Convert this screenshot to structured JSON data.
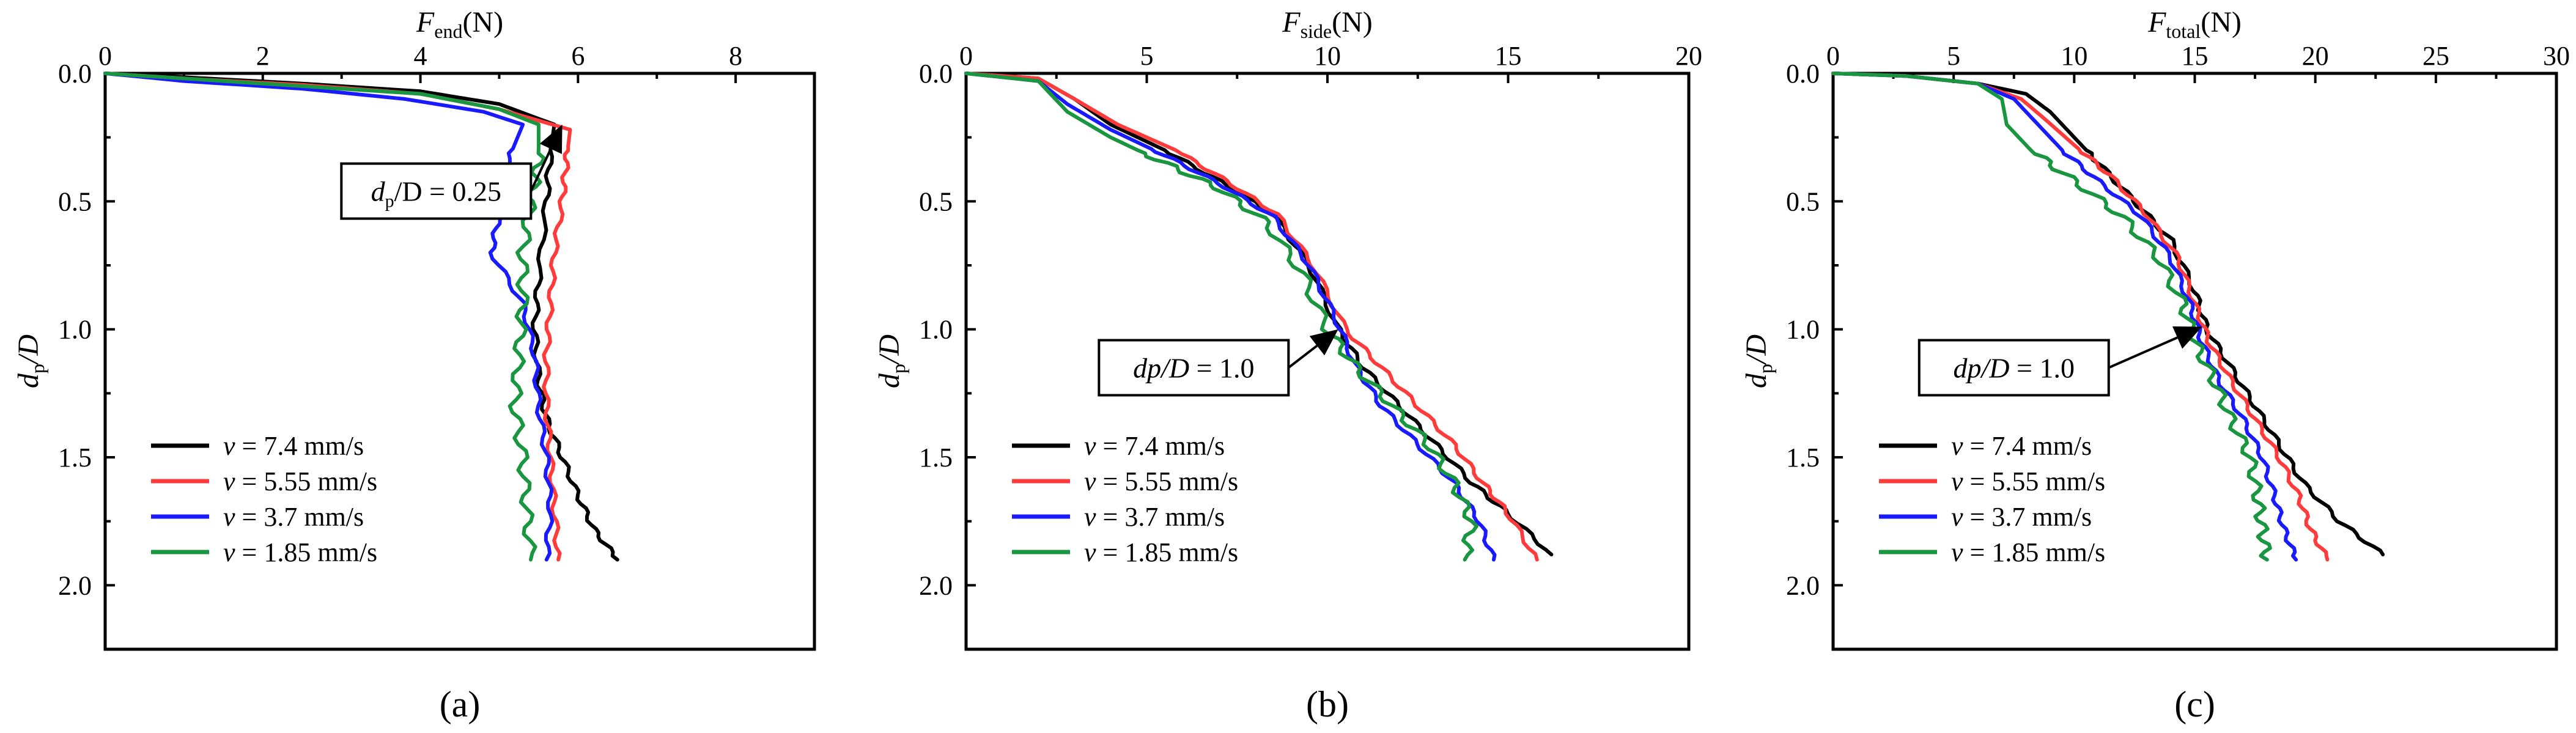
{
  "colors": {
    "v_7_4": "#000000",
    "v_5_55": "#ff3b3b",
    "v_3_7": "#1a1aff",
    "v_1_85": "#1a9641"
  },
  "chart_data": [
    {
      "type": "line",
      "panel_label": "(a)",
      "xlabel": {
        "main": "F",
        "sub": "end",
        "unit": "(N)"
      },
      "ylabel": {
        "main": "d",
        "sub": "p",
        "rest": "/D"
      },
      "xlim": [
        0,
        9
      ],
      "ylim": [
        0,
        2.25
      ],
      "xticks": [
        0,
        2,
        4,
        6,
        8
      ],
      "xtick_labels": [
        "0",
        "2",
        "4",
        "6",
        "8"
      ],
      "yticks": [
        0,
        0.5,
        1.0,
        1.5,
        2.0
      ],
      "ytick_labels": [
        "0.0",
        "0.5",
        "1.0",
        "1.5",
        "2.0"
      ],
      "annotation": {
        "main": "d",
        "sub": "p",
        "rest": "/D = 0.25",
        "point": [
          5.8,
          0.2
        ],
        "text_pos": [
          4.2,
          0.46
        ]
      },
      "legend": {
        "position": "bottom-left",
        "entries": [
          {
            "v": "v",
            "text": " = 7.4 mm/s",
            "color_key": "v_7_4"
          },
          {
            "v": "v",
            "text": " = 5.55 mm/s",
            "color_key": "v_5_55"
          },
          {
            "v": "v",
            "text": " = 3.7 mm/s",
            "color_key": "v_3_7"
          },
          {
            "v": "v",
            "text": " = 1.85 mm/s",
            "color_key": "v_1_85"
          }
        ]
      },
      "series": [
        {
          "name": "v = 7.4 mm/s",
          "color_key": "v_7_4",
          "points": [
            [
              0,
              0
            ],
            [
              1,
              0.015
            ],
            [
              2.5,
              0.04
            ],
            [
              4,
              0.07
            ],
            [
              5,
              0.12
            ],
            [
              5.7,
              0.2
            ],
            [
              5.65,
              0.3
            ],
            [
              5.6,
              0.5
            ],
            [
              5.5,
              0.8
            ],
            [
              5.45,
              1.0
            ],
            [
              5.5,
              1.2
            ],
            [
              5.6,
              1.35
            ],
            [
              5.8,
              1.5
            ],
            [
              6.0,
              1.65
            ],
            [
              6.2,
              1.78
            ],
            [
              6.5,
              1.9
            ]
          ]
        },
        {
          "name": "v = 5.55 mm/s",
          "color_key": "v_5_55",
          "points": [
            [
              0,
              0
            ],
            [
              1,
              0.02
            ],
            [
              2.5,
              0.045
            ],
            [
              4,
              0.08
            ],
            [
              5,
              0.14
            ],
            [
              5.9,
              0.22
            ],
            [
              5.85,
              0.35
            ],
            [
              5.8,
              0.5
            ],
            [
              5.7,
              0.7
            ],
            [
              5.65,
              0.9
            ],
            [
              5.6,
              1.1
            ],
            [
              5.6,
              1.3
            ],
            [
              5.65,
              1.5
            ],
            [
              5.7,
              1.7
            ],
            [
              5.75,
              1.9
            ]
          ]
        },
        {
          "name": "v = 3.7 mm/s",
          "color_key": "v_3_7",
          "points": [
            [
              0,
              0
            ],
            [
              1,
              0.03
            ],
            [
              2.5,
              0.06
            ],
            [
              3.8,
              0.1
            ],
            [
              4.8,
              0.15
            ],
            [
              5.3,
              0.2
            ],
            [
              5.1,
              0.35
            ],
            [
              5.0,
              0.55
            ],
            [
              4.9,
              0.7
            ],
            [
              5.3,
              0.9
            ],
            [
              5.45,
              1.1
            ],
            [
              5.5,
              1.3
            ],
            [
              5.6,
              1.5
            ],
            [
              5.65,
              1.7
            ],
            [
              5.6,
              1.9
            ]
          ]
        },
        {
          "name": "v = 1.85 mm/s",
          "color_key": "v_1_85",
          "points": [
            [
              0,
              0
            ],
            [
              1,
              0.02
            ],
            [
              2.5,
              0.05
            ],
            [
              4,
              0.08
            ],
            [
              5,
              0.14
            ],
            [
              5.5,
              0.2
            ],
            [
              5.5,
              0.35
            ],
            [
              5.4,
              0.5
            ],
            [
              5.3,
              0.7
            ],
            [
              5.3,
              0.9
            ],
            [
              5.25,
              1.1
            ],
            [
              5.2,
              1.3
            ],
            [
              5.3,
              1.5
            ],
            [
              5.35,
              1.7
            ],
            [
              5.4,
              1.9
            ]
          ]
        }
      ]
    },
    {
      "type": "line",
      "panel_label": "(b)",
      "xlabel": {
        "main": "F",
        "sub": "side",
        "unit": "(N)"
      },
      "ylabel": {
        "main": "d",
        "sub": "p",
        "rest": "/D"
      },
      "xlim": [
        0,
        20
      ],
      "ylim": [
        0,
        2.25
      ],
      "xticks": [
        0,
        5,
        10,
        15,
        20
      ],
      "xtick_labels": [
        "0",
        "5",
        "10",
        "15",
        "20"
      ],
      "yticks": [
        0,
        0.5,
        1.0,
        1.5,
        2.0
      ],
      "ytick_labels": [
        "0.0",
        "0.5",
        "1.0",
        "1.5",
        "2.0"
      ],
      "annotation": {
        "main": "dp/D",
        "sub": "",
        "rest": " = 1.0",
        "point": [
          10.3,
          1.0
        ],
        "text_pos": [
          6.3,
          1.15
        ]
      },
      "legend": {
        "position": "bottom-left",
        "entries": [
          {
            "v": "v",
            "text": " = 7.4 mm/s",
            "color_key": "v_7_4"
          },
          {
            "v": "v",
            "text": " = 5.55 mm/s",
            "color_key": "v_5_55"
          },
          {
            "v": "v",
            "text": " = 3.7 mm/s",
            "color_key": "v_3_7"
          },
          {
            "v": "v",
            "text": " = 1.85 mm/s",
            "color_key": "v_1_85"
          }
        ]
      },
      "series": [
        {
          "name": "v = 7.4 mm/s",
          "color_key": "v_7_4",
          "points": [
            [
              0,
              0
            ],
            [
              2,
              0.02
            ],
            [
              3,
              0.1
            ],
            [
              4,
              0.2
            ],
            [
              5.5,
              0.3
            ],
            [
              7,
              0.42
            ],
            [
              8.5,
              0.55
            ],
            [
              9.5,
              0.75
            ],
            [
              10.3,
              1.0
            ],
            [
              11,
              1.15
            ],
            [
              12,
              1.3
            ],
            [
              13,
              1.45
            ],
            [
              14,
              1.6
            ],
            [
              15,
              1.72
            ],
            [
              16.2,
              1.88
            ]
          ]
        },
        {
          "name": "v = 5.55 mm/s",
          "color_key": "v_5_55",
          "points": [
            [
              0,
              0
            ],
            [
              2,
              0.02
            ],
            [
              3,
              0.1
            ],
            [
              4.2,
              0.2
            ],
            [
              5.8,
              0.3
            ],
            [
              7.2,
              0.42
            ],
            [
              8.6,
              0.55
            ],
            [
              9.6,
              0.75
            ],
            [
              10.5,
              1.0
            ],
            [
              11.5,
              1.15
            ],
            [
              12.5,
              1.3
            ],
            [
              13.5,
              1.45
            ],
            [
              14.3,
              1.6
            ],
            [
              15,
              1.72
            ],
            [
              15.8,
              1.9
            ]
          ]
        },
        {
          "name": "v = 3.7 mm/s",
          "color_key": "v_3_7",
          "points": [
            [
              0,
              0
            ],
            [
              2,
              0.03
            ],
            [
              2.8,
              0.12
            ],
            [
              4,
              0.22
            ],
            [
              5.5,
              0.32
            ],
            [
              7,
              0.43
            ],
            [
              8.5,
              0.56
            ],
            [
              9.5,
              0.75
            ],
            [
              10.2,
              0.95
            ],
            [
              10.8,
              1.15
            ],
            [
              11.5,
              1.3
            ],
            [
              12.5,
              1.45
            ],
            [
              13.5,
              1.6
            ],
            [
              14.2,
              1.75
            ],
            [
              14.6,
              1.9
            ]
          ]
        },
        {
          "name": "v = 1.85 mm/s",
          "color_key": "v_1_85",
          "points": [
            [
              0,
              0
            ],
            [
              2,
              0.03
            ],
            [
              2.8,
              0.15
            ],
            [
              4,
              0.25
            ],
            [
              5.5,
              0.35
            ],
            [
              7,
              0.45
            ],
            [
              8.3,
              0.58
            ],
            [
              9.3,
              0.78
            ],
            [
              10.0,
              1.0
            ],
            [
              10.8,
              1.15
            ],
            [
              11.8,
              1.3
            ],
            [
              12.8,
              1.45
            ],
            [
              13.5,
              1.6
            ],
            [
              14.0,
              1.75
            ],
            [
              13.8,
              1.9
            ]
          ]
        }
      ]
    },
    {
      "type": "line",
      "panel_label": "(c)",
      "xlabel": {
        "main": "F",
        "sub": "total",
        "unit": "(N)"
      },
      "ylabel": {
        "main": "d",
        "sub": "p",
        "rest": "/D"
      },
      "xlim": [
        0,
        30
      ],
      "ylim": [
        0,
        2.25
      ],
      "xticks": [
        0,
        5,
        10,
        15,
        20,
        25,
        30
      ],
      "xtick_labels": [
        "0",
        "5",
        "10",
        "15",
        "20",
        "25",
        "30"
      ],
      "yticks": [
        0,
        0.5,
        1.0,
        1.5,
        2.0
      ],
      "ytick_labels": [
        "0.0",
        "0.5",
        "1.0",
        "1.5",
        "2.0"
      ],
      "annotation": {
        "main": "dp/D",
        "sub": "",
        "rest": " = 1.0",
        "point": [
          15.3,
          0.99
        ],
        "text_pos": [
          7.5,
          1.15
        ]
      },
      "legend": {
        "position": "bottom-left",
        "entries": [
          {
            "v": "v",
            "text": " = 7.4 mm/s",
            "color_key": "v_7_4"
          },
          {
            "v": "v",
            "text": " = 5.55 mm/s",
            "color_key": "v_5_55"
          },
          {
            "v": "v",
            "text": " = 3.7 mm/s",
            "color_key": "v_3_7"
          },
          {
            "v": "v",
            "text": " = 1.85 mm/s",
            "color_key": "v_1_85"
          }
        ]
      },
      "series": [
        {
          "name": "v = 7.4 mm/s",
          "color_key": "v_7_4",
          "points": [
            [
              0,
              0
            ],
            [
              3,
              0.01
            ],
            [
              6,
              0.04
            ],
            [
              8,
              0.08
            ],
            [
              9,
              0.15
            ],
            [
              10,
              0.25
            ],
            [
              11,
              0.35
            ],
            [
              12.5,
              0.5
            ],
            [
              14,
              0.65
            ],
            [
              15,
              0.85
            ],
            [
              15.5,
              1.0
            ],
            [
              16.5,
              1.15
            ],
            [
              17.5,
              1.3
            ],
            [
              18.5,
              1.45
            ],
            [
              19.5,
              1.6
            ],
            [
              21,
              1.75
            ],
            [
              22.8,
              1.88
            ]
          ]
        },
        {
          "name": "v = 5.55 mm/s",
          "color_key": "v_5_55",
          "points": [
            [
              0,
              0
            ],
            [
              3,
              0.01
            ],
            [
              6,
              0.04
            ],
            [
              7.8,
              0.1
            ],
            [
              8.8,
              0.18
            ],
            [
              10,
              0.28
            ],
            [
              11.5,
              0.4
            ],
            [
              13,
              0.55
            ],
            [
              14.3,
              0.72
            ],
            [
              15,
              0.9
            ],
            [
              15.6,
              1.05
            ],
            [
              16.5,
              1.2
            ],
            [
              17.5,
              1.35
            ],
            [
              18.5,
              1.5
            ],
            [
              19.3,
              1.65
            ],
            [
              19.8,
              1.78
            ],
            [
              20.5,
              1.9
            ]
          ]
        },
        {
          "name": "v = 3.7 mm/s",
          "color_key": "v_3_7",
          "points": [
            [
              0,
              0
            ],
            [
              3,
              0.01
            ],
            [
              6,
              0.04
            ],
            [
              7.5,
              0.1
            ],
            [
              8.5,
              0.2
            ],
            [
              9.5,
              0.3
            ],
            [
              11,
              0.42
            ],
            [
              12.8,
              0.56
            ],
            [
              14,
              0.72
            ],
            [
              14.8,
              0.9
            ],
            [
              15.3,
              1.05
            ],
            [
              16,
              1.2
            ],
            [
              17,
              1.35
            ],
            [
              17.8,
              1.5
            ],
            [
              18.3,
              1.65
            ],
            [
              18.7,
              1.78
            ],
            [
              19.2,
              1.9
            ]
          ]
        },
        {
          "name": "v = 1.85 mm/s",
          "color_key": "v_1_85",
          "points": [
            [
              0,
              0
            ],
            [
              3,
              0.01
            ],
            [
              6,
              0.04
            ],
            [
              7,
              0.1
            ],
            [
              7.2,
              0.2
            ],
            [
              8.2,
              0.3
            ],
            [
              10,
              0.42
            ],
            [
              12,
              0.56
            ],
            [
              13.5,
              0.72
            ],
            [
              14.5,
              0.9
            ],
            [
              15,
              1.05
            ],
            [
              15.8,
              1.2
            ],
            [
              16.5,
              1.35
            ],
            [
              17.3,
              1.5
            ],
            [
              17.6,
              1.65
            ],
            [
              17.8,
              1.78
            ],
            [
              18.0,
              1.9
            ]
          ]
        }
      ]
    }
  ]
}
